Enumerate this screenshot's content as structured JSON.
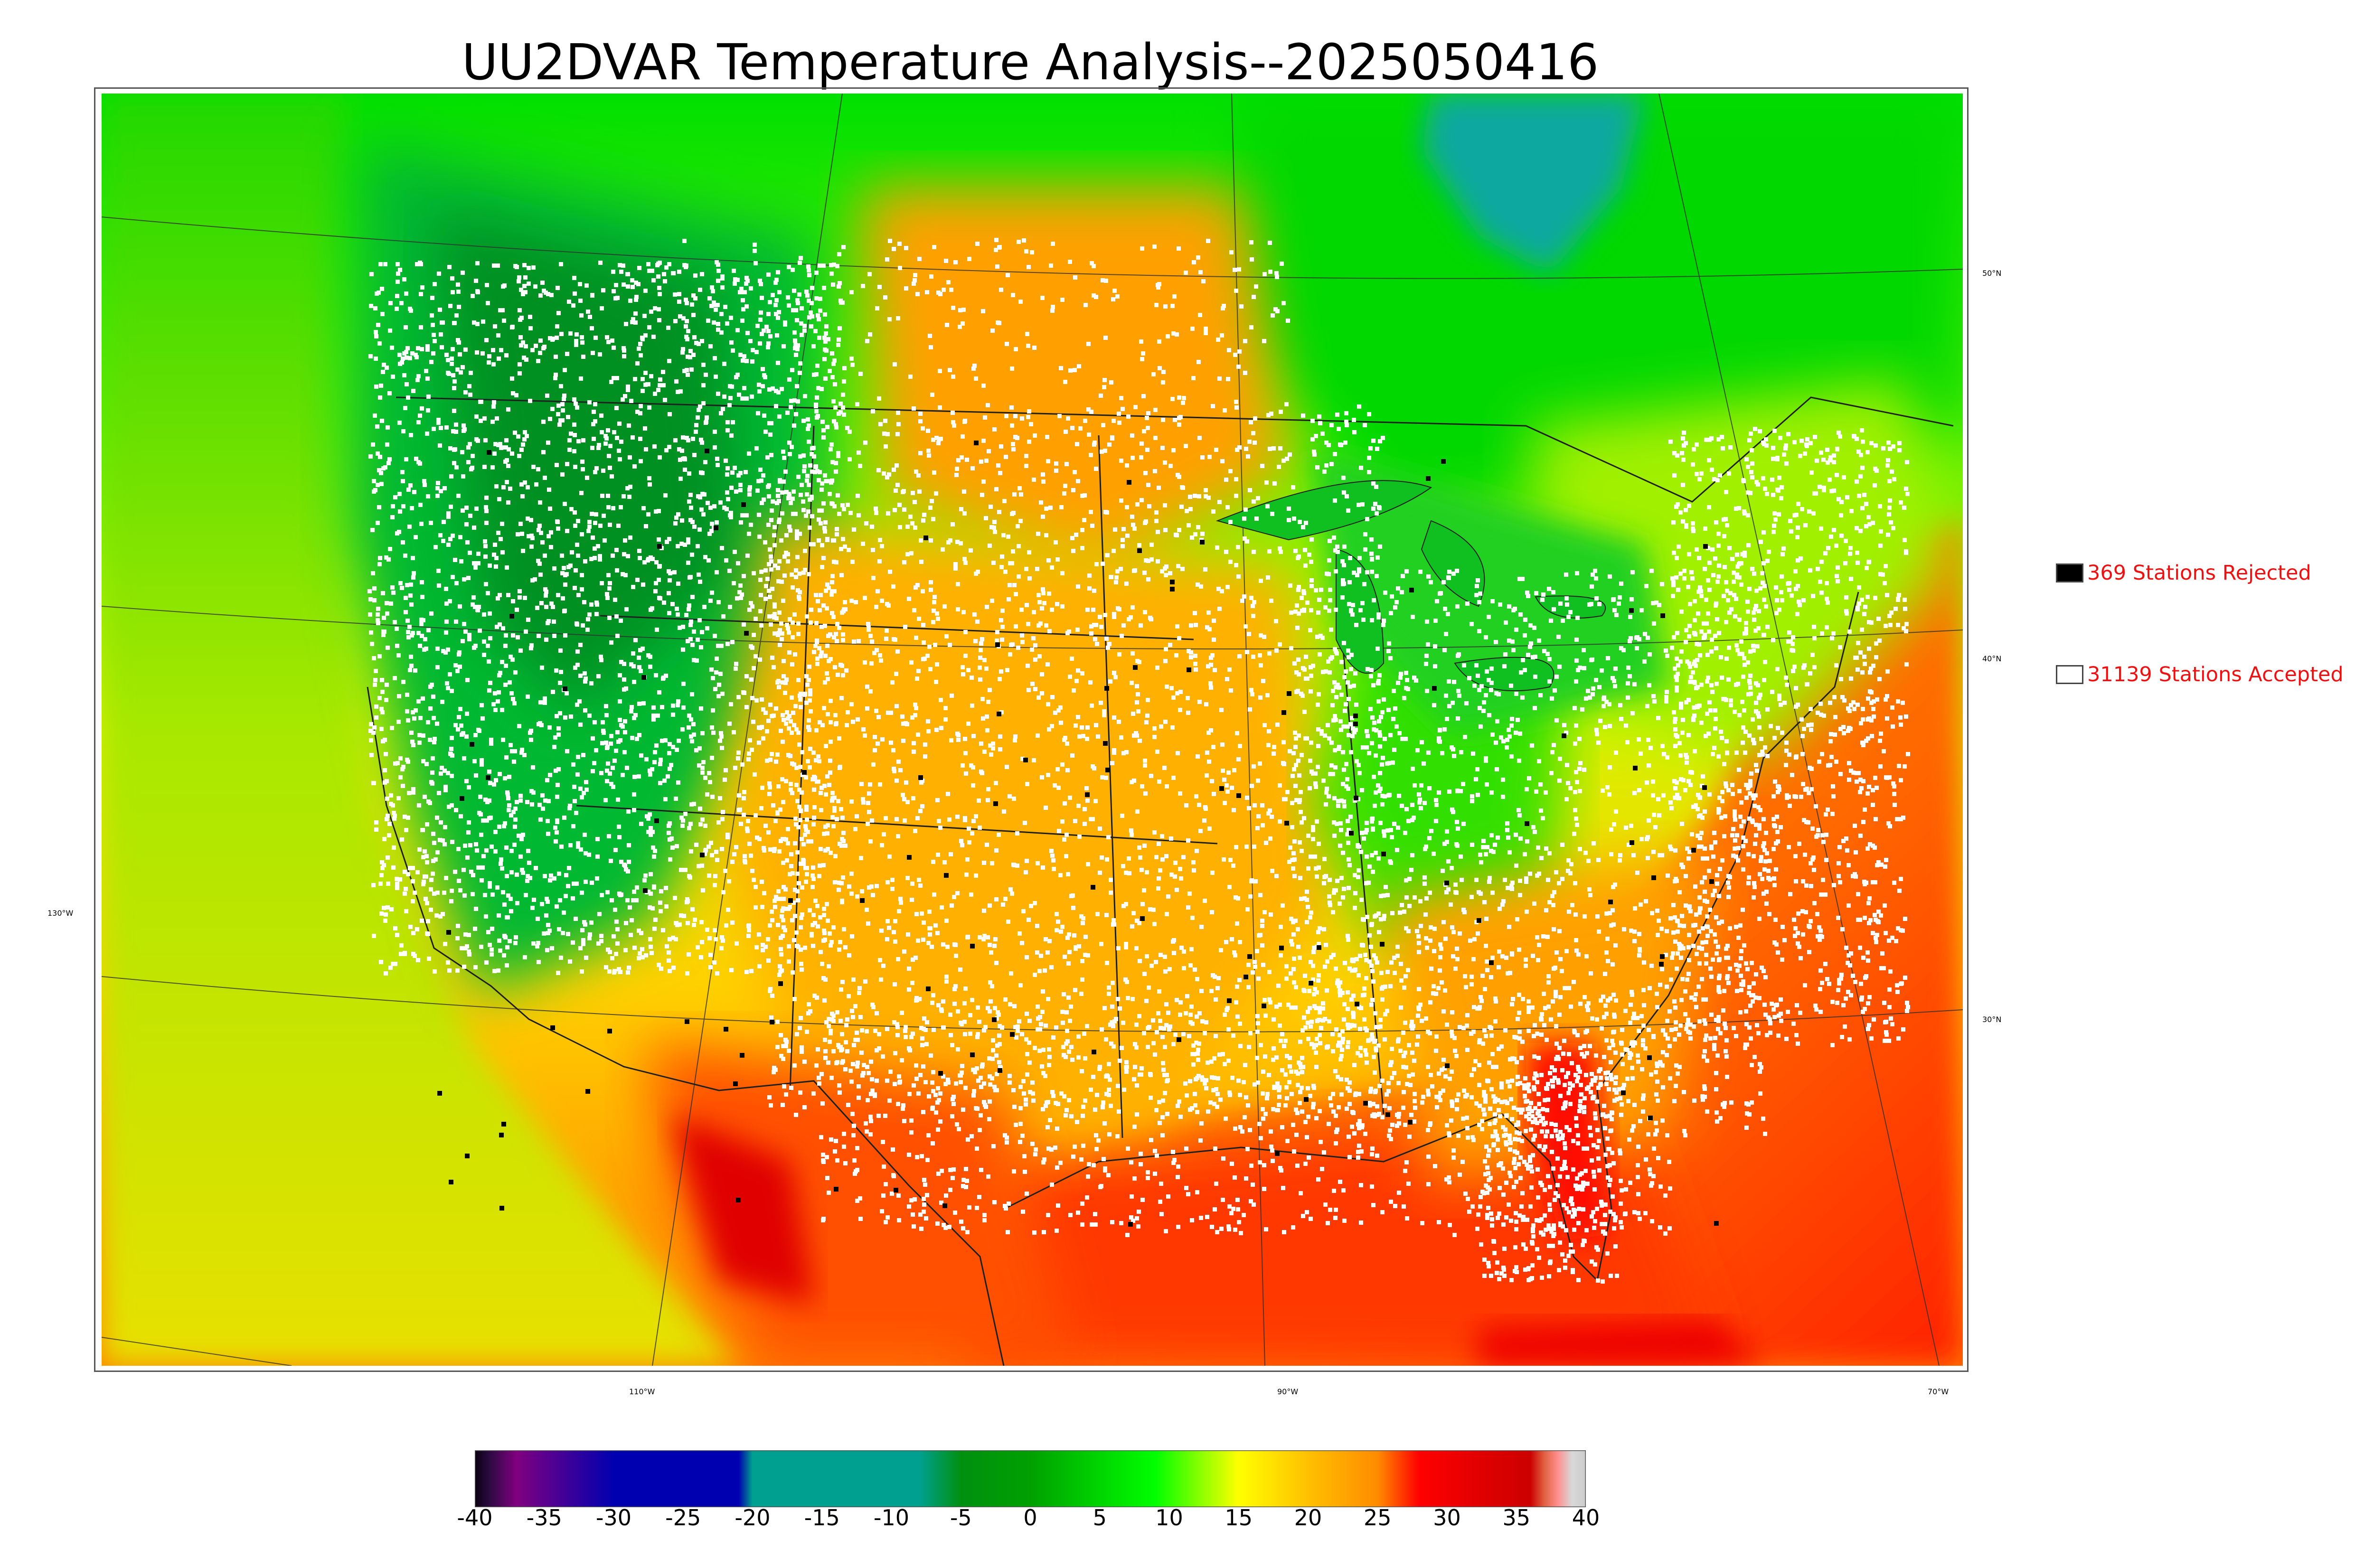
{
  "title": "UU2DVAR Temperature Analysis--2025050416",
  "legend": {
    "rejected": {
      "count": 369,
      "label": "369 Stations Rejected",
      "color": "#000000"
    },
    "accepted": {
      "count": 31139,
      "label": "31139 Stations Accepted",
      "color": "#ffffff"
    }
  },
  "longitude_labels": [
    "110°W",
    "90°W",
    "70°W"
  ],
  "latitude_labels": [
    "130°W",
    "50°N",
    "40°N",
    "30°N"
  ],
  "colorbar": {
    "ticks": [
      "-40",
      "-35",
      "-30",
      "-25",
      "-20",
      "-15",
      "-10",
      "-5",
      "0",
      "5",
      "10",
      "15",
      "20",
      "25",
      "30",
      "35",
      "40"
    ],
    "range": [
      -40,
      40
    ],
    "stops": [
      {
        "value": -40,
        "color": "#0a0010"
      },
      {
        "value": -39,
        "color": "#2a0a40"
      },
      {
        "value": -37,
        "color": "#800080"
      },
      {
        "value": -30,
        "color": "#0000b0"
      },
      {
        "value": -21,
        "color": "#0000b0"
      },
      {
        "value": -20,
        "color": "#00a090"
      },
      {
        "value": -8,
        "color": "#00a090"
      },
      {
        "value": -5,
        "color": "#009010"
      },
      {
        "value": 0,
        "color": "#00a000"
      },
      {
        "value": 9,
        "color": "#00ff00"
      },
      {
        "value": 15,
        "color": "#ffff00"
      },
      {
        "value": 20,
        "color": "#ffc000"
      },
      {
        "value": 25,
        "color": "#ff8c00"
      },
      {
        "value": 28,
        "color": "#ff0000"
      },
      {
        "value": 33,
        "color": "#dd0000"
      },
      {
        "value": 36,
        "color": "#cc0000"
      },
      {
        "value": 37,
        "color": "#e06040"
      },
      {
        "value": 38,
        "color": "#ff9090"
      },
      {
        "value": 39,
        "color": "#d8d8d8"
      },
      {
        "value": 40,
        "color": "#cccccc"
      }
    ]
  },
  "colors": {
    "ocean_west": "#c8e800",
    "ocean_south": "#ff6a00",
    "canada_north": "#00e000",
    "hudson_bay": "#10a8a0",
    "rockies": "#00a020",
    "plains": "#ffb000",
    "gulf": "#ff3000"
  }
}
